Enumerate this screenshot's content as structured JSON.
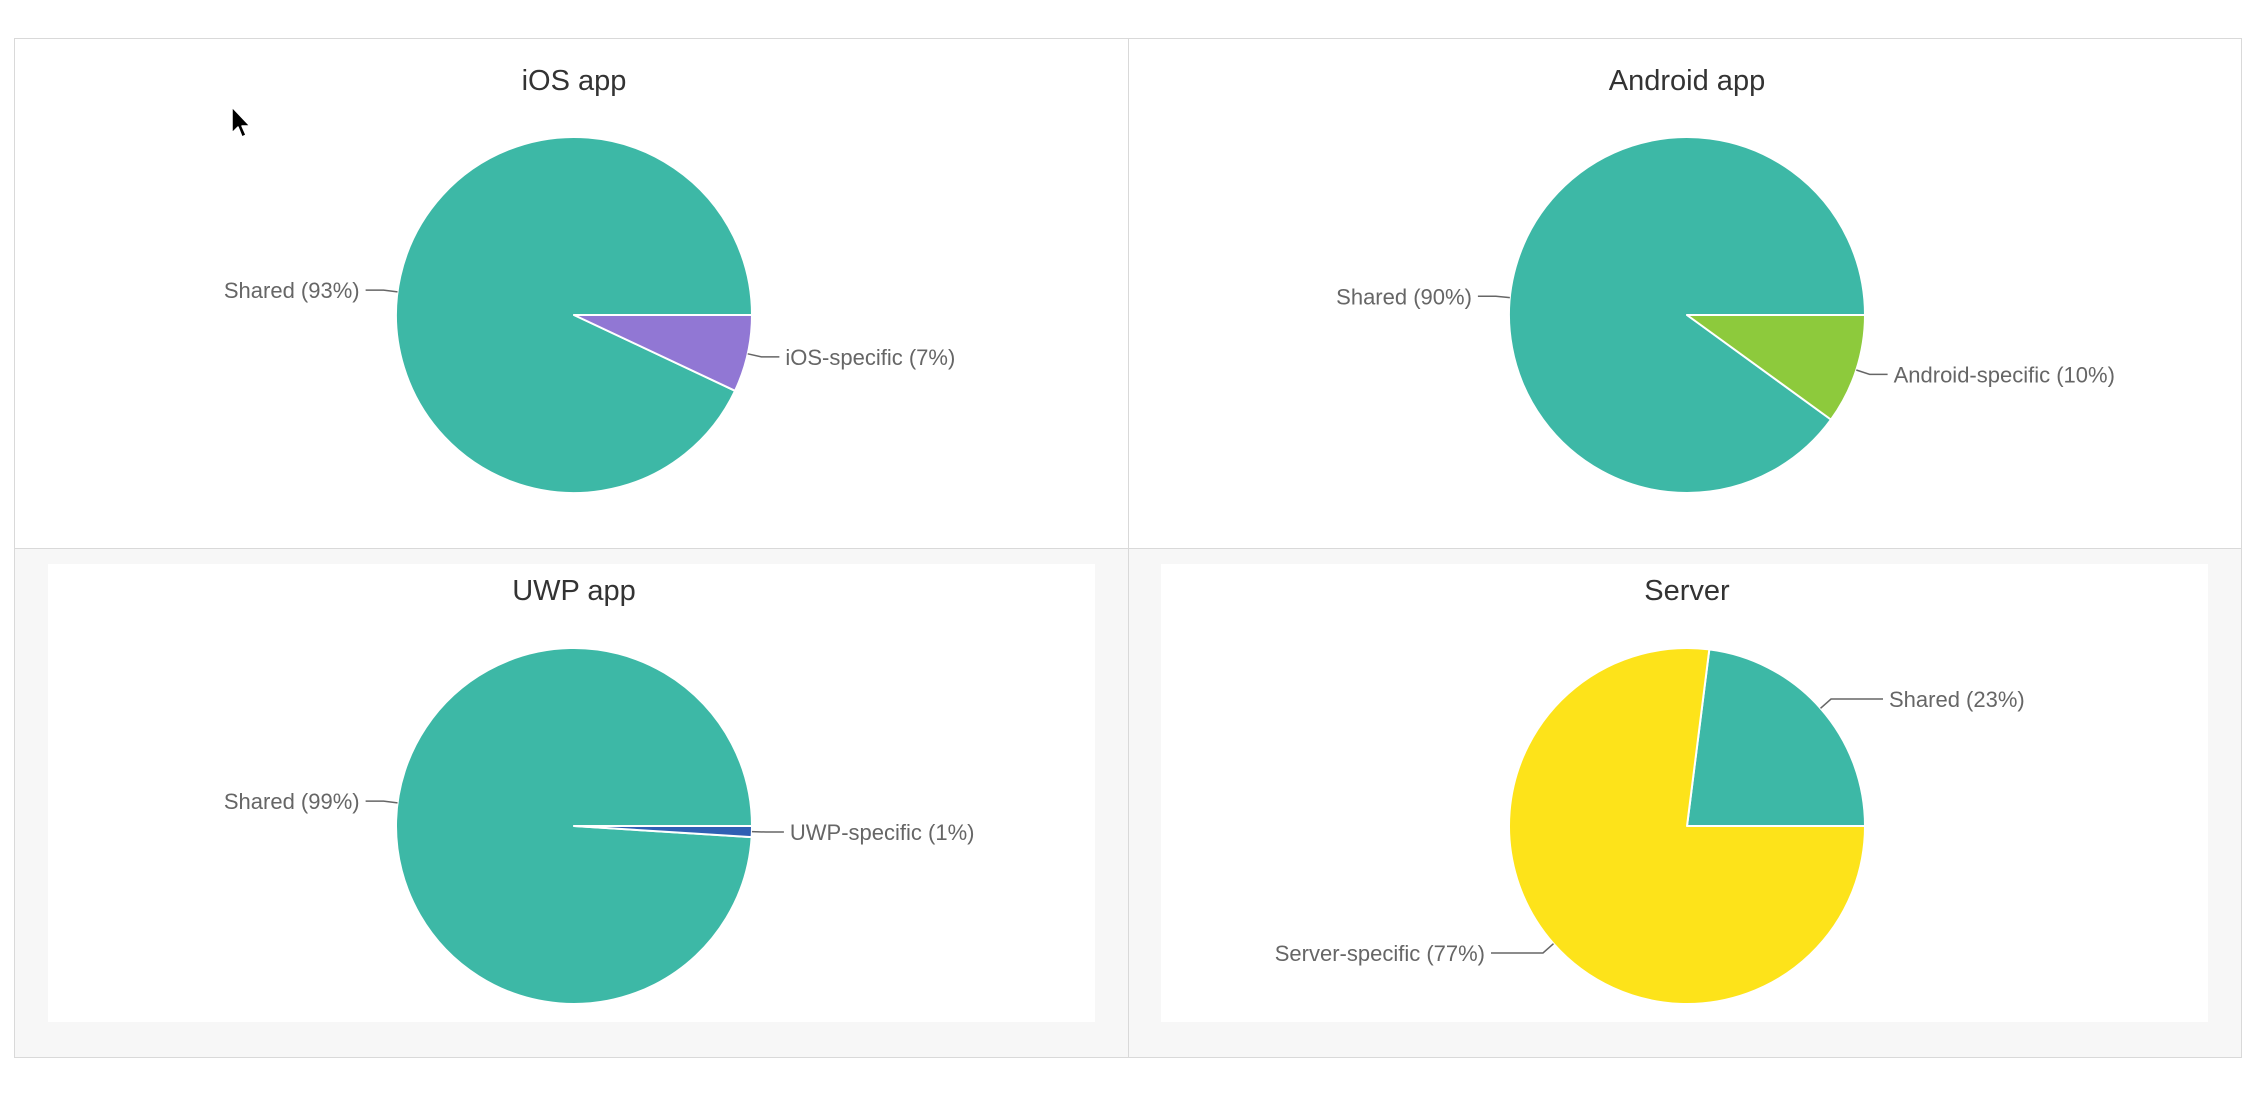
{
  "chart_data": [
    {
      "type": "pie",
      "title": "iOS app",
      "slices": [
        {
          "label": "Shared (93%)",
          "value": 93,
          "color": "#3db8a6"
        },
        {
          "label": "iOS-specific (7%)",
          "value": 7,
          "color": "#9177d4"
        }
      ]
    },
    {
      "type": "pie",
      "title": "Android app",
      "slices": [
        {
          "label": "Shared (90%)",
          "value": 90,
          "color": "#3db8a6"
        },
        {
          "label": "Android-specific (10%)",
          "value": 10,
          "color": "#8dca3c"
        }
      ]
    },
    {
      "type": "pie",
      "title": "UWP app",
      "slices": [
        {
          "label": "Shared (99%)",
          "value": 99,
          "color": "#3db8a6"
        },
        {
          "label": "UWP-specific (1%)",
          "value": 1,
          "color": "#2f5fb3"
        }
      ]
    },
    {
      "type": "pie",
      "title": "Server",
      "slices": [
        {
          "label": "Shared (23%)",
          "value": 23,
          "color": "#3db8a6"
        },
        {
          "label": "Server-specific (77%)",
          "value": 77,
          "color": "#fde31a"
        }
      ]
    }
  ]
}
